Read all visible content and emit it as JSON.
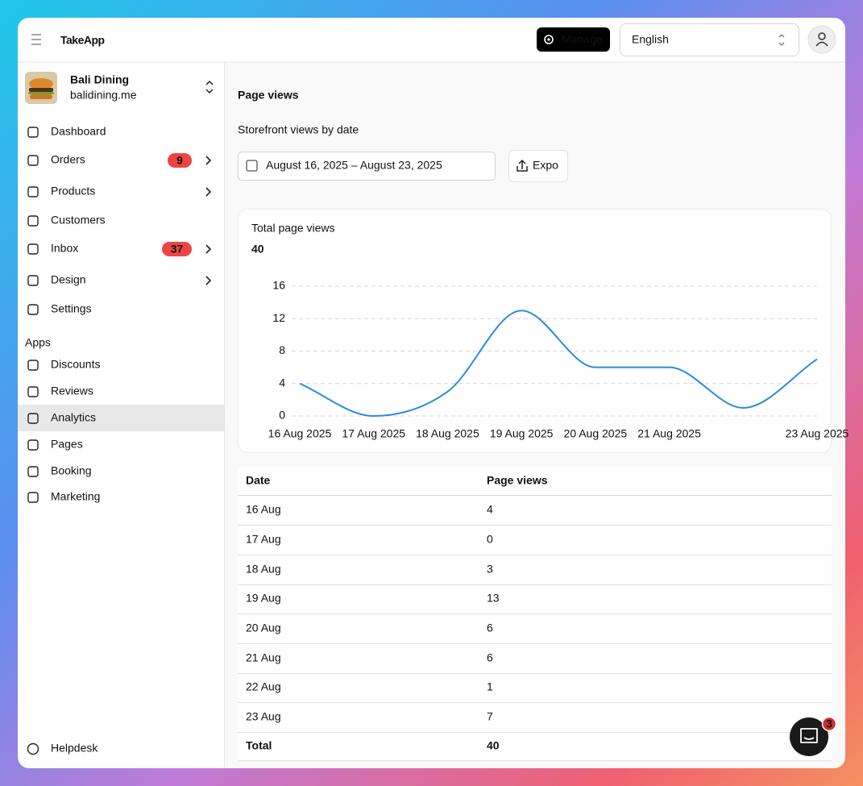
{
  "header": {
    "logo": "TakeApp",
    "manage": "Manage",
    "language": "English"
  },
  "store": {
    "name": "Bali Dining",
    "domain": "balidining.me"
  },
  "nav": [
    {
      "label": "Dashboard"
    },
    {
      "label": "Orders",
      "badge": 9
    },
    {
      "label": "Products"
    },
    {
      "label": "Customers"
    },
    {
      "label": "Inbox",
      "badge": 37
    },
    {
      "label": "Design"
    },
    {
      "label": "Settings"
    }
  ],
  "apps_heading": "Apps",
  "apps": [
    {
      "label": "Discounts"
    },
    {
      "label": "Reviews"
    },
    {
      "label": "Analytics"
    },
    {
      "label": "Pages"
    },
    {
      "label": "Booking"
    },
    {
      "label": "Marketing"
    }
  ],
  "helpdesk": "Helpdesk",
  "page": {
    "title": "Page views",
    "subtitle": "Storefront views by date",
    "date_range": "August 16, 2025 – August 23, 2025",
    "export": "Expo"
  },
  "chart_data": {
    "type": "line",
    "title": "Total page views",
    "total": 40,
    "categories": [
      "16 Aug 2025",
      "17 Aug 2025",
      "18 Aug 2025",
      "19 Aug 2025",
      "20 Aug 2025",
      "21 Aug 2025",
      null,
      "23 Aug 2025"
    ],
    "values": [
      4,
      0,
      3,
      13,
      6,
      6,
      1,
      7
    ],
    "color": "#2b8ae0",
    "ylim": [
      0,
      16
    ],
    "yticks": [
      0,
      4,
      8,
      12,
      16
    ],
    "grid": true
  },
  "table": {
    "columns": [
      "Date",
      "Page views"
    ],
    "rows": [
      [
        "16 Aug",
        4
      ],
      [
        "17 Aug",
        0
      ],
      [
        "18 Aug",
        3
      ],
      [
        "19 Aug",
        13
      ],
      [
        "20 Aug",
        6
      ],
      [
        "21 Aug",
        6
      ],
      [
        "22 Aug",
        1
      ],
      [
        "23 Aug",
        7
      ]
    ],
    "total": [
      "Total",
      40
    ]
  },
  "chat_badge": 3
}
